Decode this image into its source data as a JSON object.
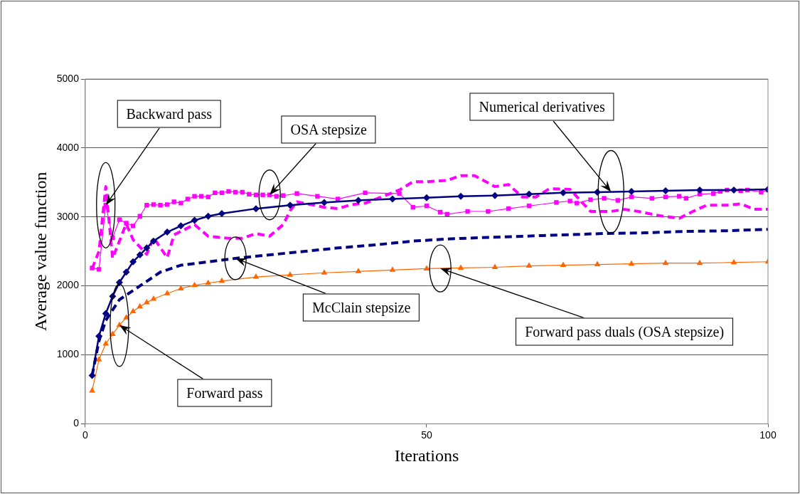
{
  "chart_data": {
    "type": "line",
    "xlabel": "Iterations",
    "ylabel": "Average value function",
    "xlim": [
      0,
      100
    ],
    "xticks": [
      0,
      50,
      100
    ],
    "ylim": [
      0,
      5000
    ],
    "yticks": [
      0,
      1000,
      2000,
      3000,
      4000,
      5000
    ],
    "grid": "y",
    "legend": false,
    "series": [
      {
        "color": "#000080",
        "marker": "diamond",
        "line_style": "solid",
        "x": [
          1,
          2,
          3,
          4,
          5,
          6,
          7,
          8,
          9,
          10,
          12,
          14,
          16,
          18,
          20,
          25,
          30,
          35,
          40,
          45,
          50,
          55,
          60,
          65,
          70,
          75,
          80,
          85,
          90,
          95,
          100
        ],
        "values": [
          700,
          1270,
          1600,
          1850,
          2050,
          2200,
          2350,
          2450,
          2550,
          2650,
          2780,
          2870,
          2950,
          3010,
          3050,
          3120,
          3170,
          3210,
          3240,
          3260,
          3280,
          3300,
          3310,
          3330,
          3350,
          3360,
          3370,
          3380,
          3390,
          3390,
          3400
        ]
      },
      {
        "color": "#ff00ff",
        "marker": "square",
        "line_style": "solid",
        "x": [
          1,
          2,
          3,
          4,
          5,
          6,
          7,
          8,
          9,
          10,
          11,
          12,
          13,
          14,
          15,
          16,
          17,
          18,
          19,
          20,
          21,
          22,
          23,
          24,
          25,
          26,
          27,
          28,
          29,
          31,
          34,
          37,
          41,
          46,
          48,
          50,
          52,
          53,
          56,
          59,
          62,
          65,
          69,
          71,
          72,
          74,
          76,
          78,
          80,
          83,
          85,
          87,
          88,
          90,
          92,
          93,
          94,
          96,
          97,
          99,
          100
        ],
        "values": [
          2260,
          2240,
          3170,
          2700,
          2960,
          2910,
          2870,
          3010,
          3170,
          3180,
          3170,
          3180,
          3220,
          3200,
          3260,
          3300,
          3300,
          3290,
          3350,
          3350,
          3370,
          3360,
          3360,
          3330,
          3320,
          3320,
          3320,
          3300,
          3310,
          3340,
          3300,
          3260,
          3350,
          3340,
          3140,
          3160,
          3070,
          3040,
          3080,
          3080,
          3120,
          3160,
          3210,
          3230,
          3200,
          3250,
          3270,
          3240,
          3290,
          3270,
          3290,
          3300,
          3270,
          3330,
          3340,
          3370,
          3390,
          3380,
          3390,
          3360,
          3390
        ]
      },
      {
        "color": "#ff00ff",
        "marker": "none",
        "line_style": "dashed",
        "x": [
          1,
          2,
          3,
          4,
          6,
          7,
          9,
          10,
          12,
          13,
          16,
          18,
          21,
          23,
          25,
          27,
          29,
          30,
          31,
          35,
          37,
          39,
          41,
          46,
          48,
          50,
          53,
          55,
          57,
          60,
          62,
          64,
          66,
          68,
          71,
          74,
          77,
          79,
          81,
          84,
          87,
          89,
          91,
          94,
          96,
          98,
          100
        ],
        "values": [
          2250,
          2500,
          3440,
          2400,
          2900,
          2670,
          2460,
          2700,
          2410,
          2740,
          2890,
          2720,
          2690,
          2690,
          2760,
          2720,
          2890,
          3090,
          3220,
          3140,
          3120,
          3180,
          3200,
          3390,
          3510,
          3510,
          3530,
          3600,
          3600,
          3440,
          3470,
          3290,
          3290,
          3410,
          3400,
          3080,
          3080,
          3110,
          3080,
          3020,
          2980,
          3080,
          3170,
          3170,
          3190,
          3110,
          3110
        ]
      },
      {
        "color": "#000080",
        "marker": "none",
        "line_style": "dashed",
        "x": [
          1,
          2,
          3,
          5,
          8,
          11,
          14,
          18,
          22,
          27,
          32,
          37,
          43,
          48,
          53,
          58,
          64,
          70,
          76,
          82,
          88,
          94,
          100
        ],
        "values": [
          700,
          1200,
          1500,
          1800,
          2000,
          2200,
          2300,
          2350,
          2400,
          2450,
          2500,
          2550,
          2600,
          2650,
          2680,
          2700,
          2720,
          2740,
          2760,
          2770,
          2790,
          2800,
          2820
        ]
      },
      {
        "color": "#ff6600",
        "marker": "triangle",
        "line_style": "solid",
        "x": [
          1,
          2,
          3,
          4,
          5,
          6,
          7,
          8,
          9,
          10,
          12,
          14,
          16,
          18,
          20,
          25,
          30,
          35,
          40,
          45,
          50,
          55,
          60,
          65,
          70,
          75,
          80,
          85,
          90,
          95,
          100
        ],
        "values": [
          480,
          930,
          1160,
          1300,
          1430,
          1540,
          1630,
          1700,
          1760,
          1810,
          1890,
          1960,
          2010,
          2040,
          2070,
          2130,
          2160,
          2190,
          2210,
          2230,
          2250,
          2260,
          2270,
          2290,
          2300,
          2310,
          2320,
          2330,
          2330,
          2340,
          2350
        ]
      }
    ],
    "annotations": [
      {
        "text": "Backward pass",
        "x": 3,
        "y": 3170
      },
      {
        "text": "OSA stepsize",
        "x": 27,
        "y": 3320
      },
      {
        "text": "Numerical derivatives",
        "x": 77,
        "y": 3364
      },
      {
        "text": "McClain stepsize",
        "x": 22,
        "y": 2400
      },
      {
        "text": "Forward pass duals (OSA stepsize)",
        "x": 52,
        "y": 2254
      },
      {
        "text": "Forward pass",
        "x": 5,
        "y": 1430
      }
    ]
  }
}
